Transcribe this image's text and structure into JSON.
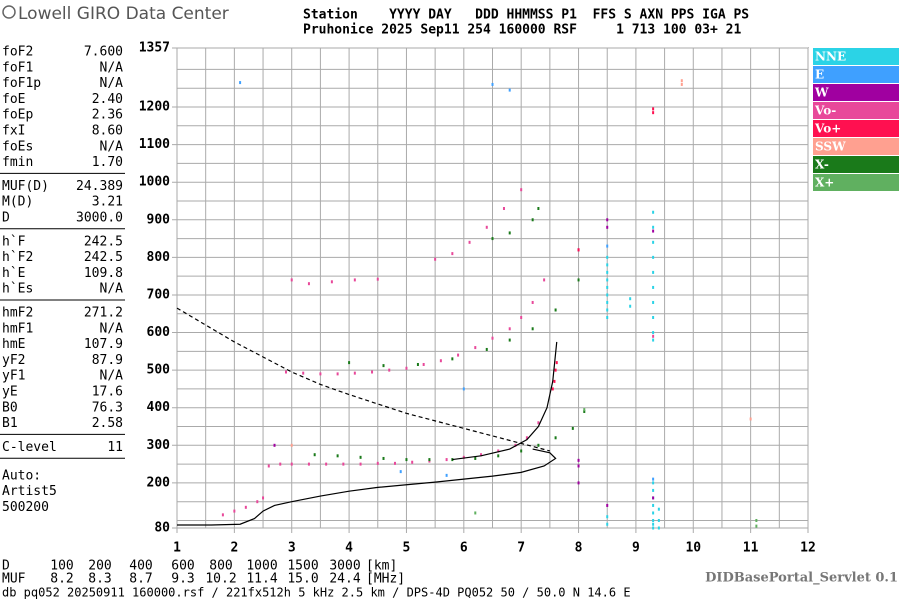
{
  "header": {
    "brand": "Lowell GIRO Data Center",
    "row1": "Station    YYYY DAY   DDD HHMMSS P1  FFS S AXN PPS IGA PS",
    "row2": "Pruhonice 2025 Sep11 254 160000 RSF     1 713 100 03+ 21"
  },
  "parameters": [
    [
      [
        "foF2",
        "7.600"
      ],
      [
        "foF1",
        "N/A"
      ],
      [
        "foF1p",
        "N/A"
      ],
      [
        "foE",
        "2.40"
      ],
      [
        "foEp",
        "2.36"
      ],
      [
        "fxI",
        "8.60"
      ],
      [
        "foEs",
        "N/A"
      ],
      [
        "fmin",
        "1.70"
      ]
    ],
    [
      [
        "MUF(D)",
        "24.389"
      ],
      [
        "M(D)",
        "3.21"
      ],
      [
        "D",
        "3000.0"
      ]
    ],
    [
      [
        "h`F",
        "242.5"
      ],
      [
        "h`F2",
        "242.5"
      ],
      [
        "h`E",
        "109.8"
      ],
      [
        "h`Es",
        "N/A"
      ]
    ],
    [
      [
        "hmF2",
        "271.2"
      ],
      [
        "hmF1",
        "N/A"
      ],
      [
        "hmE",
        "107.9"
      ],
      [
        "yF2",
        "87.9"
      ],
      [
        "yF1",
        "N/A"
      ],
      [
        "yE",
        "17.6"
      ],
      [
        "B0",
        "76.3"
      ],
      [
        "B1",
        "2.58"
      ]
    ],
    [
      [
        "C-level",
        "11"
      ]
    ]
  ],
  "auto": [
    "Auto:",
    "Artist5",
    "500200"
  ],
  "chart_data": {
    "type": "scatter",
    "xlim": [
      1,
      12
    ],
    "xticks": [
      1,
      2,
      3,
      4,
      5,
      6,
      7,
      8,
      9,
      10,
      11,
      12
    ],
    "xgrid": [
      1.5,
      2.5,
      3.5,
      4.5,
      5.5,
      6.5,
      7.5,
      8.5,
      9.5,
      10.5,
      11.5
    ],
    "ylim": [
      80,
      1357
    ],
    "yticks": [
      80,
      200,
      300,
      400,
      500,
      600,
      700,
      800,
      900,
      1000,
      1100,
      1200,
      1357
    ],
    "ygrid": [
      100,
      150,
      250,
      350,
      450,
      550,
      650,
      750,
      850,
      950,
      1050,
      1150,
      1250,
      1300
    ],
    "series": [
      {
        "name": "NNE",
        "color": "#2bd3e6",
        "x": [
          8.5,
          8.5,
          8.5,
          8.5,
          8.5,
          8.5,
          8.5,
          8.5,
          8.5,
          9.3,
          9.3,
          9.3,
          9.3,
          9.3,
          9.3,
          9.3,
          9.3,
          9.3,
          9.3,
          9.3,
          9.3,
          9.3,
          9.3,
          9.3,
          9.3,
          9.3,
          9.3,
          9.4,
          9.4,
          9.4,
          8.9,
          8.9,
          8.5,
          8.5
        ],
        "y": [
          640,
          660,
          680,
          700,
          720,
          740,
          760,
          780,
          800,
          600,
          640,
          680,
          720,
          760,
          800,
          840,
          880,
          920,
          580,
          100,
          120,
          140,
          160,
          180,
          200,
          90,
          80,
          80,
          100,
          130,
          670,
          690,
          90,
          110
        ]
      },
      {
        "name": "E",
        "color": "#3fa0ff",
        "x": [
          6.8,
          6.5,
          2.1,
          6.0,
          8.5,
          9.3,
          4.9,
          5.7
        ],
        "y": [
          1245,
          1260,
          1265,
          450,
          830,
          210,
          230,
          220
        ]
      },
      {
        "name": "W",
        "color": "#a000a0",
        "x": [
          8.5,
          8.5,
          9.3,
          8.0,
          8.0,
          8.0,
          2.7,
          8.5,
          9.3,
          8.0
        ],
        "y": [
          900,
          880,
          870,
          820,
          260,
          245,
          300,
          140,
          160,
          200
        ]
      },
      {
        "name": "Vo-",
        "color": "#e8489a",
        "x": [
          1.8,
          2.0,
          2.2,
          2.4,
          2.5,
          2.6,
          2.8,
          3.0,
          3.3,
          3.6,
          3.9,
          4.2,
          4.5,
          4.8,
          5.1,
          5.4,
          5.7,
          6.0,
          6.3,
          6.6,
          6.9,
          7.1,
          7.3,
          2.9,
          3.2,
          3.5,
          3.8,
          4.1,
          4.4,
          4.7,
          5.0,
          5.3,
          5.6,
          5.9,
          6.2,
          6.5,
          6.8,
          7.0,
          7.2,
          7.4,
          3.3,
          3.7,
          4.1,
          4.5,
          5.5,
          5.8,
          6.1,
          6.4,
          6.7,
          7.0,
          9.3,
          3.0
        ],
        "y": [
          115,
          125,
          135,
          150,
          160,
          245,
          250,
          250,
          250,
          250,
          250,
          250,
          252,
          252,
          255,
          258,
          262,
          268,
          275,
          285,
          300,
          320,
          360,
          495,
          492,
          490,
          490,
          492,
          495,
          500,
          505,
          515,
          525,
          540,
          560,
          585,
          610,
          640,
          680,
          740,
          730,
          735,
          740,
          742,
          795,
          810,
          840,
          880,
          930,
          980,
          590,
          740
        ]
      },
      {
        "name": "Vo+",
        "color": "#ff1050",
        "x": [
          7.55,
          7.58,
          7.6,
          7.62,
          9.3,
          9.3,
          8.0
        ],
        "y": [
          450,
          470,
          500,
          520,
          1195,
          1185,
          820
        ]
      },
      {
        "name": "SSW",
        "color": "#ffa090",
        "x": [
          9.8,
          11.0,
          3.0,
          9.8
        ],
        "y": [
          1270,
          370,
          300,
          1260
        ]
      },
      {
        "name": "X-",
        "color": "#1a7a1a",
        "x": [
          3.4,
          3.8,
          4.2,
          4.6,
          5.0,
          5.4,
          5.8,
          6.2,
          6.6,
          7.0,
          7.3,
          7.6,
          7.9,
          8.1,
          4.0,
          4.6,
          5.2,
          5.8,
          6.4,
          6.8,
          7.2,
          7.6,
          8.0,
          6.5,
          6.8,
          7.2,
          7.3
        ],
        "y": [
          275,
          272,
          268,
          265,
          262,
          262,
          262,
          265,
          272,
          285,
          300,
          320,
          345,
          390,
          520,
          512,
          515,
          530,
          555,
          580,
          610,
          660,
          740,
          850,
          865,
          900,
          930
        ]
      },
      {
        "name": "X+",
        "color": "#60b060",
        "x": [
          11.1,
          6.2,
          8.1,
          11.1
        ],
        "y": [
          100,
          120,
          395,
          85
        ]
      }
    ],
    "curves": [
      {
        "style": "solid",
        "x": [
          1.0,
          1.6,
          2.1,
          2.35,
          2.5,
          2.7,
          3.0,
          3.5,
          4.0,
          4.5,
          5.0,
          5.5,
          6.0,
          6.5,
          7.0,
          7.4,
          7.6,
          7.5,
          7.2
        ],
        "y": [
          88,
          88,
          90,
          105,
          125,
          140,
          150,
          165,
          178,
          188,
          195,
          202,
          210,
          218,
          228,
          245,
          265,
          280,
          290
        ]
      },
      {
        "style": "solid",
        "x": [
          5.8,
          6.3,
          6.8,
          7.1,
          7.3,
          7.45,
          7.55,
          7.62
        ],
        "y": [
          262,
          272,
          290,
          315,
          350,
          400,
          470,
          575
        ]
      },
      {
        "style": "dashed",
        "x": [
          1.0,
          1.5,
          2.0,
          2.5,
          3.0,
          3.5,
          4.0,
          4.5,
          5.0,
          5.5,
          6.0,
          6.5,
          7.0,
          7.5
        ],
        "y": [
          665,
          620,
          575,
          535,
          495,
          462,
          435,
          410,
          385,
          365,
          345,
          325,
          305,
          285
        ]
      }
    ]
  },
  "footer": {
    "d_label": "D",
    "d_values": [
      100,
      200,
      400,
      600,
      800,
      1000,
      1500,
      3000
    ],
    "d_unit": "[km]",
    "muf_label": "MUF",
    "muf_values": [
      "8.2",
      "8.3",
      "8.7",
      "9.3",
      "10.2",
      "11.4",
      "15.0",
      "24.4"
    ],
    "muf_unit": "[MHz]",
    "servlet": "DIDBasePortal_Servlet 0.1",
    "file": "db pq052 20250911 160000.rsf / 221fx512h 5 kHz 2.5 km / DPS-4D PQ052 50 / 50.0 N 14.6 E"
  }
}
